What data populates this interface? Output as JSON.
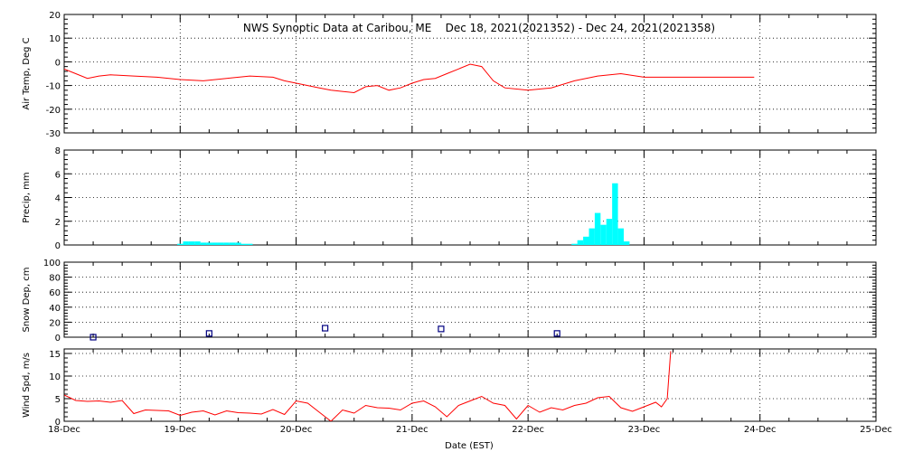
{
  "title": "NWS Synoptic Data at Caribou, ME    Dec 18, 2021(2021352) - Dec 24, 2021(2021358)",
  "xlabel": "Date (EST)",
  "x_ticks": [
    "18-Dec",
    "19-Dec",
    "20-Dec",
    "21-Dec",
    "22-Dec",
    "23-Dec",
    "24-Dec",
    "25-Dec"
  ],
  "colors": {
    "line": "#ff0000",
    "bar": "#00ffff",
    "marker": "#000080",
    "grid": "#000000"
  },
  "chart_data": [
    {
      "type": "line",
      "ylabel": "Air Temp, Deg C",
      "xlim": [
        0,
        7
      ],
      "ylim": [
        -30,
        20
      ],
      "yticks": [
        -30,
        -20,
        -10,
        0,
        10,
        20
      ],
      "grid": true,
      "x": [
        0,
        0.1,
        0.2,
        0.3,
        0.4,
        0.6,
        0.8,
        1.0,
        1.2,
        1.4,
        1.6,
        1.8,
        1.9,
        2.0,
        2.2,
        2.3,
        2.5,
        2.6,
        2.7,
        2.8,
        2.9,
        3.0,
        3.1,
        3.2,
        3.3,
        3.4,
        3.5,
        3.6,
        3.7,
        3.8,
        4.0,
        4.2,
        4.4,
        4.6,
        4.8,
        5.0,
        5.2,
        5.4,
        5.6,
        5.8,
        5.95
      ],
      "values": [
        -3,
        -5,
        -7,
        -6,
        -5.5,
        -6,
        -6.5,
        -7.5,
        -8,
        -7,
        -6,
        -6.5,
        -8,
        -9,
        -11,
        -12,
        -13,
        -10.5,
        -10,
        -12,
        -11,
        -9,
        -7.5,
        -7,
        -5,
        -3,
        -1,
        -2,
        -8,
        -11,
        -12,
        -11,
        -8,
        -6,
        -5,
        -6.5,
        -6.5,
        -6.5,
        -6.5,
        -6.5,
        -6.5
      ]
    },
    {
      "type": "bar",
      "ylabel": "Precip, mm",
      "xlim": [
        0,
        7
      ],
      "ylim": [
        0,
        8
      ],
      "yticks": [
        0,
        2,
        4,
        6,
        8
      ],
      "grid": true,
      "x": [
        1.0,
        1.05,
        1.1,
        1.15,
        1.2,
        1.25,
        1.3,
        1.35,
        1.4,
        1.45,
        1.5,
        1.55,
        1.6,
        4.4,
        4.45,
        4.5,
        4.55,
        4.6,
        4.65,
        4.7,
        4.75,
        4.8,
        4.85
      ],
      "values": [
        0.1,
        0.3,
        0.3,
        0.3,
        0.2,
        0.2,
        0.2,
        0.2,
        0.2,
        0.2,
        0.2,
        0.1,
        0.1,
        0.1,
        0.4,
        0.7,
        1.4,
        2.7,
        1.7,
        2.2,
        5.2,
        1.4,
        0.3
      ]
    },
    {
      "type": "scatter",
      "ylabel": "Snow Dep, cm",
      "xlim": [
        0,
        7
      ],
      "ylim": [
        0,
        100
      ],
      "yticks": [
        0,
        20,
        40,
        60,
        80,
        100
      ],
      "grid": true,
      "x": [
        0.25,
        1.25,
        2.25,
        3.25,
        4.25
      ],
      "values": [
        0,
        5,
        12,
        11,
        5
      ]
    },
    {
      "type": "line",
      "ylabel": "Wind Spd, m/s",
      "xlim": [
        0,
        7
      ],
      "ylim": [
        0,
        16
      ],
      "yticks": [
        0,
        5,
        10,
        15
      ],
      "grid": true,
      "x": [
        0,
        0.1,
        0.2,
        0.3,
        0.4,
        0.5,
        0.6,
        0.7,
        0.8,
        0.9,
        1.0,
        1.1,
        1.2,
        1.3,
        1.4,
        1.5,
        1.6,
        1.7,
        1.8,
        1.9,
        2.0,
        2.1,
        2.2,
        2.3,
        2.4,
        2.5,
        2.6,
        2.7,
        2.8,
        2.9,
        3.0,
        3.1,
        3.2,
        3.3,
        3.4,
        3.5,
        3.6,
        3.7,
        3.8,
        3.9,
        4.0,
        4.1,
        4.2,
        4.3,
        4.4,
        4.5,
        4.6,
        4.7,
        4.8,
        4.9,
        5.0,
        5.1,
        5.15,
        5.2,
        5.23
      ],
      "values": [
        5.8,
        4.6,
        4.4,
        4.5,
        4.2,
        4.6,
        1.7,
        2.5,
        2.4,
        2.3,
        1.3,
        2.0,
        2.3,
        1.4,
        2.3,
        1.9,
        1.8,
        1.6,
        2.6,
        1.5,
        4.5,
        4.0,
        2.0,
        0,
        2.5,
        1.8,
        3.5,
        3.0,
        2.9,
        2.5,
        4.0,
        4.5,
        3.2,
        1.0,
        3.5,
        4.5,
        5.5,
        4.0,
        3.5,
        0.5,
        3.5,
        2.0,
        3.0,
        2.5,
        3.5,
        4.0,
        5.2,
        5.5,
        3.0,
        2.2,
        3.2,
        4.2,
        3.2,
        5.0,
        15.5
      ]
    }
  ]
}
